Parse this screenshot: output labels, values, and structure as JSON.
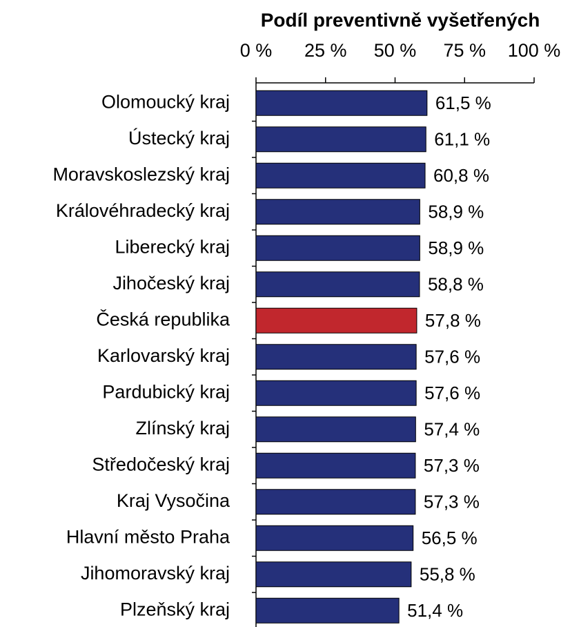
{
  "chart_data": {
    "type": "bar",
    "orientation": "horizontal",
    "title": "Podíl preventivně vyšetřených",
    "categories": [
      "Olomoucký kraj",
      "Ústecký kraj",
      "Moravskoslezský kraj",
      "Královéhradecký kraj",
      "Liberecký kraj",
      "Jihočeský kraj",
      "Česká republika",
      "Karlovarský kraj",
      "Pardubický kraj",
      "Zlínský kraj",
      "Středočeský kraj",
      "Kraj Vysočina",
      "Hlavní město Praha",
      "Jihomoravský kraj",
      "Plzeňský kraj"
    ],
    "values": [
      61.5,
      61.1,
      60.8,
      58.9,
      58.9,
      58.8,
      57.8,
      57.6,
      57.6,
      57.4,
      57.3,
      57.3,
      56.5,
      55.8,
      51.4
    ],
    "value_labels": [
      "61,5 %",
      "61,1 %",
      "60,8 %",
      "58,9 %",
      "58,9 %",
      "58,8 %",
      "57,8 %",
      "57,6 %",
      "57,6 %",
      "57,4 %",
      "57,3 %",
      "57,3 %",
      "56,5 %",
      "55,8 %",
      "51,4 %"
    ],
    "colors": [
      "#25307a",
      "#25307a",
      "#25307a",
      "#25307a",
      "#25307a",
      "#25307a",
      "#c1272d",
      "#25307a",
      "#25307a",
      "#25307a",
      "#25307a",
      "#25307a",
      "#25307a",
      "#25307a",
      "#25307a"
    ],
    "xlim": [
      0,
      100
    ],
    "xticks": [
      {
        "value": 0,
        "label": "0 %"
      },
      {
        "value": 25,
        "label": "25 %"
      },
      {
        "value": 50,
        "label": "50 %"
      },
      {
        "value": 75,
        "label": "75 %"
      },
      {
        "value": 100,
        "label": "100 %"
      }
    ],
    "grid": false
  }
}
